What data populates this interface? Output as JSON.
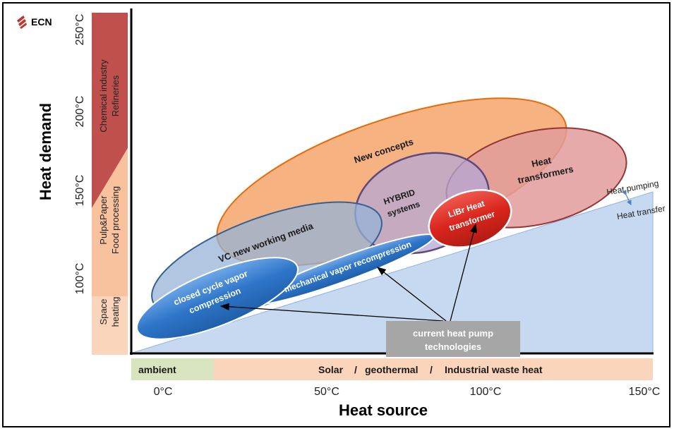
{
  "logo": {
    "text": "ECN",
    "color": "#c0332e"
  },
  "axes": {
    "y_title": "Heat demand",
    "x_title": "Heat source",
    "y_ticks": [
      "250°C",
      "200°C",
      "150°C",
      "100°C"
    ],
    "x_ticks": [
      "0°C",
      "50°C",
      "100°C",
      "150°C"
    ]
  },
  "demand_sectors": [
    {
      "line1": "Chemical industry",
      "line2": "Refineries",
      "color": "#c0504d"
    },
    {
      "line1": "Pulp&Paper",
      "line2": "Food processing",
      "color": "#f9c29f"
    },
    {
      "line1": "Space",
      "line2": "heating",
      "color": "#fbd5bb"
    }
  ],
  "source_bar": {
    "ambient": "ambient",
    "solar": "Solar",
    "sep1": "/",
    "geothermal": "geothermal",
    "sep2": "/",
    "industrial": "Industrial waste heat",
    "ambient_color": "#d7e4bd",
    "other_color": "#fbd5bb"
  },
  "boundary": {
    "pumping": "Heat pumping",
    "transfer": "Heat transfer"
  },
  "technologies": {
    "new_concepts": "New concepts",
    "heat_transformers": {
      "line1": "Heat",
      "line2": "transformers"
    },
    "hybrid": {
      "line1": "HYBRID",
      "line2": "systems"
    },
    "vc_media": "VC new working media",
    "libr": {
      "line1": "LiBr Heat",
      "line2": "transformer"
    },
    "mvr": "mechanical  vapor recompression",
    "closed_cycle": {
      "line1": "closed cycle vapor",
      "line2": "compression"
    }
  },
  "callout": {
    "line1": "current heat pump",
    "line2": "technologies",
    "color": "#a6a6a6"
  },
  "colors": {
    "orange": "#f4a46a",
    "orange_stroke": "#e46c0a",
    "red_ell": "#e09b9a",
    "red_stroke": "#943634",
    "purple": "#b4a7d6",
    "purple_stroke": "#5f497a",
    "blue_trans": "#95b3d7",
    "blue_stroke": "#366092",
    "blue_solid": "#2e75c9",
    "libr_red": "#d9251c",
    "triangle": "#c6d9f1"
  }
}
